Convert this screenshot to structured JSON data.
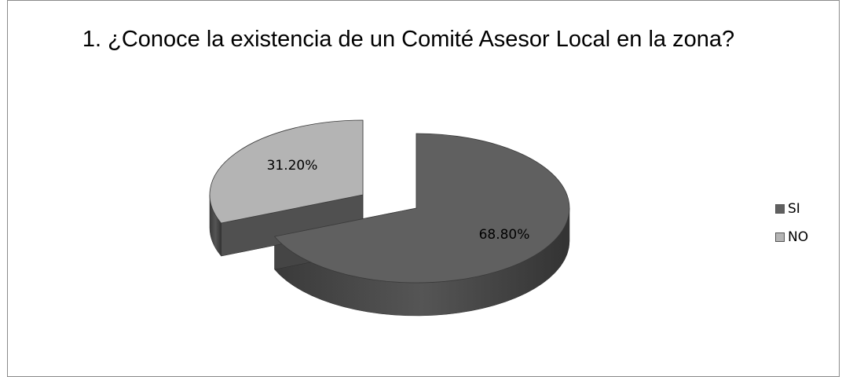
{
  "chart_data": {
    "type": "pie",
    "title": "1.  ¿Conoce la existencia de un Comité Asesor Local en la zona?",
    "categories": [
      "SI",
      "NO"
    ],
    "values": [
      68.8,
      31.2
    ],
    "data_labels": [
      "68.80%",
      "31.20%"
    ],
    "legend_position": "right",
    "colors": [
      "#606060",
      "#b4b4b4"
    ],
    "side_colors": [
      "#454545",
      "#505050"
    ],
    "exploded": "NO",
    "style": "3d"
  }
}
